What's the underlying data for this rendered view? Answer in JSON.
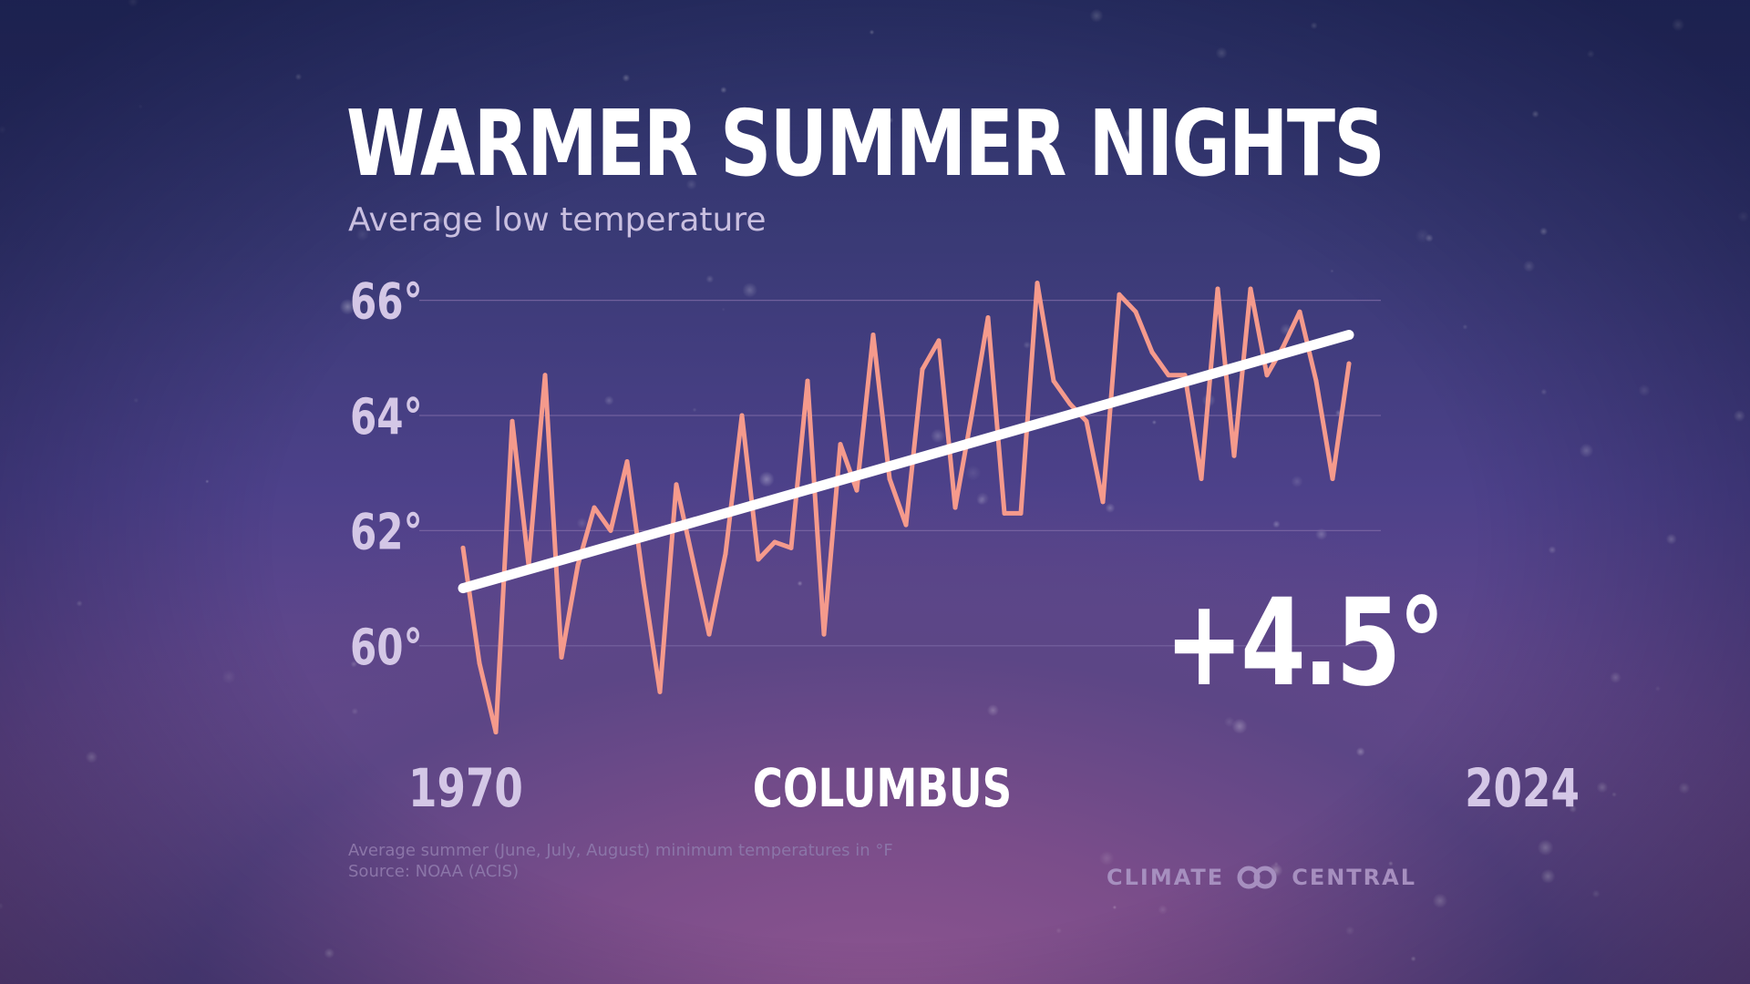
{
  "title": "WARMER SUMMER NIGHTS",
  "subtitle": "Average low temperature",
  "change_label": "+4.5°",
  "x_start_label": "1970",
  "x_end_label": "2024",
  "location": "COLUMBUS",
  "footnote": {
    "line1": "Average summer (June, July, August) minimum temperatures in °F",
    "line2": "Source: NOAA (ACIS)"
  },
  "logo": {
    "left_text": "CLIMATE",
    "right_text": "CENTRAL",
    "icon": "linked-rings-icon"
  },
  "colors": {
    "series": "#f59a8c",
    "trend": "#ffffff",
    "tick_text": "#d4c7e6",
    "grid": "#7d6aa6"
  },
  "chart_data": {
    "type": "line",
    "xlim": [
      1970,
      2024
    ],
    "ylim": [
      59,
      66.5
    ],
    "y_ticks": [
      60,
      62,
      64,
      66
    ],
    "y_tick_labels": [
      "60°",
      "62°",
      "64°",
      "66°"
    ],
    "grid": true,
    "series": [
      {
        "values": [
          61.7,
          59.7,
          58.5,
          63.9,
          61.4,
          64.7,
          59.8,
          61.4,
          62.4,
          62.0,
          63.2,
          61.1,
          59.2,
          62.8,
          61.5,
          60.2,
          61.6,
          64.0,
          61.5,
          61.8,
          61.7,
          64.6,
          60.2,
          63.5,
          62.7,
          65.4,
          62.9,
          62.1,
          64.8,
          65.3,
          62.4,
          64.0,
          65.7,
          62.3,
          62.3,
          66.3,
          64.6,
          64.2,
          63.9,
          62.5,
          66.1,
          65.8,
          65.1,
          64.7,
          64.7,
          62.9,
          66.2,
          63.3,
          66.2,
          64.7,
          65.2,
          65.8,
          64.6,
          62.9,
          64.9
        ]
      }
    ],
    "trend": {
      "start": [
        1970,
        61.0
      ],
      "end": [
        2024,
        65.4
      ]
    }
  }
}
